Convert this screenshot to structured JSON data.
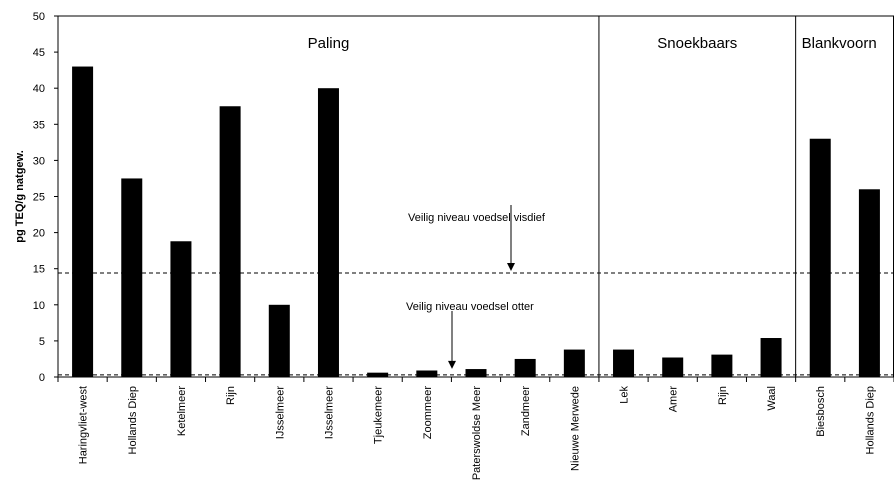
{
  "chart_data": {
    "type": "bar",
    "ylabel": "pg TEQ/g natgew.",
    "ylim": [
      0,
      50
    ],
    "yticks": [
      0,
      5,
      10,
      15,
      20,
      25,
      30,
      35,
      40,
      45,
      50
    ],
    "ytick_labels": [
      "0",
      "5",
      "10",
      "15",
      "20",
      "25",
      "30",
      "35",
      "40",
      "45",
      "50"
    ],
    "bar_color": "#000000",
    "grid": false,
    "categories": [
      "Haringvliet-west",
      "Hollands Diep",
      "Ketelmeer",
      "Rijn",
      "IJsselmeer",
      "IJsselmeer",
      "Tjeukemeer",
      "Zoommeer",
      "Paterswoldse Meer",
      "Zandmeer",
      "Nieuwe Merwede",
      "Lek",
      "Amer",
      "Rijn",
      "Waal",
      "Biesbosch",
      "Hollands Diep"
    ],
    "values": [
      43.0,
      27.5,
      18.8,
      37.5,
      10.0,
      40.0,
      0.6,
      0.9,
      1.1,
      2.5,
      3.8,
      3.8,
      2.7,
      3.1,
      5.4,
      33.0,
      26.0
    ],
    "groups": [
      {
        "name": "Paling",
        "start": 0,
        "end": 10
      },
      {
        "name": "Snoekbaars",
        "start": 11,
        "end": 14
      },
      {
        "name": "Blankvoorn",
        "start": 15,
        "end": 16
      }
    ],
    "reference_lines": [
      {
        "label": "Veilig niveau voedsel visdief",
        "value": 14.4
      },
      {
        "label": "Veilig niveau voedsel otter",
        "value": 0.3
      }
    ]
  }
}
